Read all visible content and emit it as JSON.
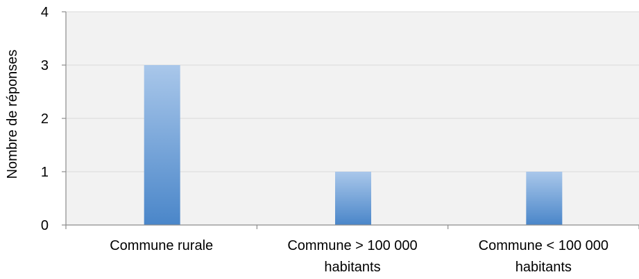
{
  "chart_data": {
    "type": "bar",
    "title": "",
    "xlabel": "",
    "ylabel": "Nombre de réponses",
    "categories": [
      [
        "Commune rurale"
      ],
      [
        "Commune > 100 000",
        "habitants"
      ],
      [
        "Commune < 100 000",
        "habitants"
      ]
    ],
    "values": [
      3,
      1,
      1
    ],
    "ylim": [
      0,
      4
    ],
    "yticks": [
      "0",
      "1",
      "2",
      "3",
      "4"
    ],
    "grid": true,
    "legend": "none",
    "colors": {
      "plot_background": "#f2f2f2",
      "gridline": "#d9d9d9",
      "axis": "#8c8c8c",
      "bar_top": "#a9c7ea",
      "bar_bottom": "#4a86c9"
    }
  }
}
